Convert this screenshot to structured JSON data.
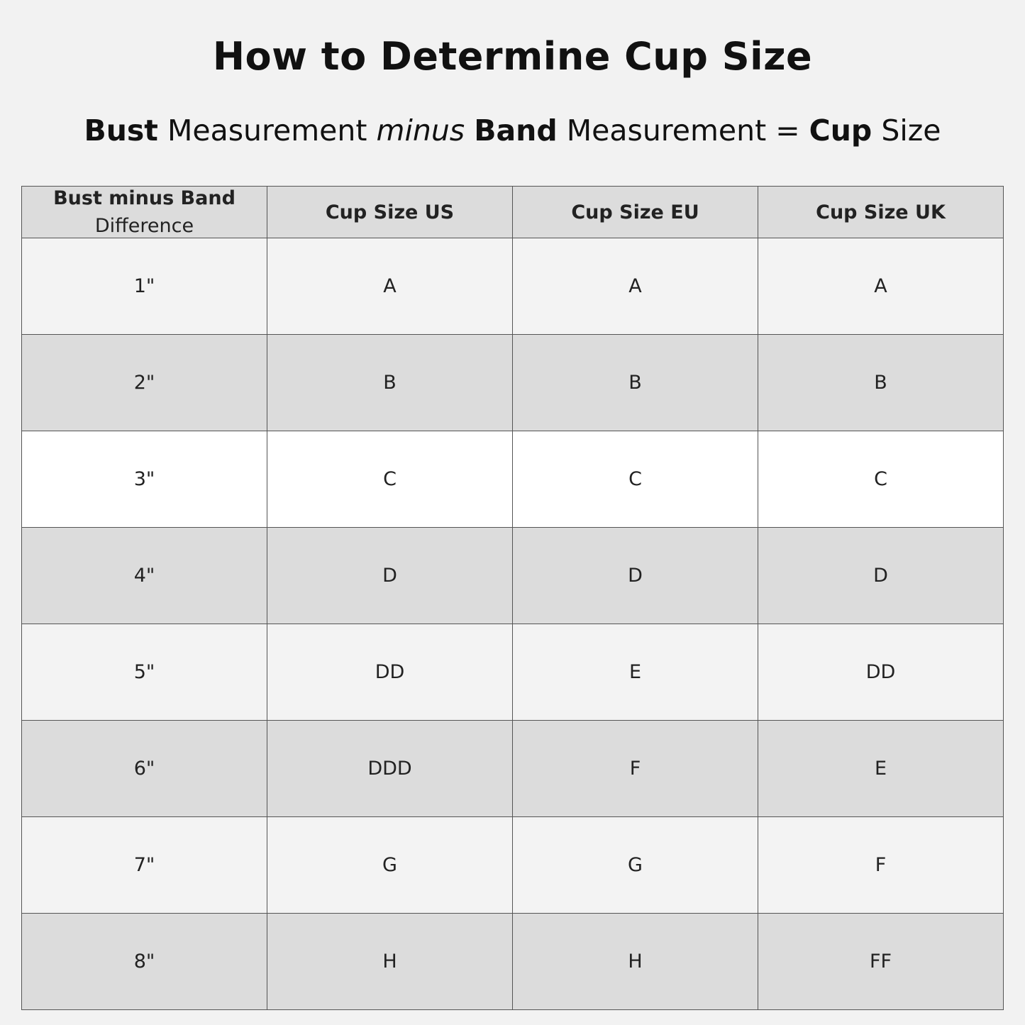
{
  "title": "How to Determine Cup Size",
  "formula": {
    "part1_bold": "Bust",
    "part2": "Measurement",
    "part3_italic": "minus",
    "part4_bold": "Band",
    "part5": "Measurement =",
    "part6_bold": "Cup",
    "part7": "Size"
  },
  "table": {
    "headers": [
      {
        "main": "Bust minus Band",
        "sub": "Difference"
      },
      {
        "main": "Cup Size US"
      },
      {
        "main": "Cup Size EU"
      },
      {
        "main": "Cup Size UK"
      }
    ],
    "rows": [
      [
        "1\"",
        "A",
        "A",
        "A"
      ],
      [
        "2\"",
        "B",
        "B",
        "B"
      ],
      [
        "3\"",
        "C",
        "C",
        "C"
      ],
      [
        "4\"",
        "D",
        "D",
        "D"
      ],
      [
        "5\"",
        "DD",
        "E",
        "DD"
      ],
      [
        "6\"",
        "DDD",
        "F",
        "E"
      ],
      [
        "7\"",
        "G",
        "G",
        "F"
      ],
      [
        "8\"",
        "H",
        "H",
        "FF"
      ]
    ],
    "row_colors": [
      "#f3f3f3",
      "#dcdcdc",
      "#ffffff",
      "#dcdcdc",
      "#f3f3f3",
      "#dcdcdc",
      "#f3f3f3",
      "#dcdcdc"
    ]
  }
}
